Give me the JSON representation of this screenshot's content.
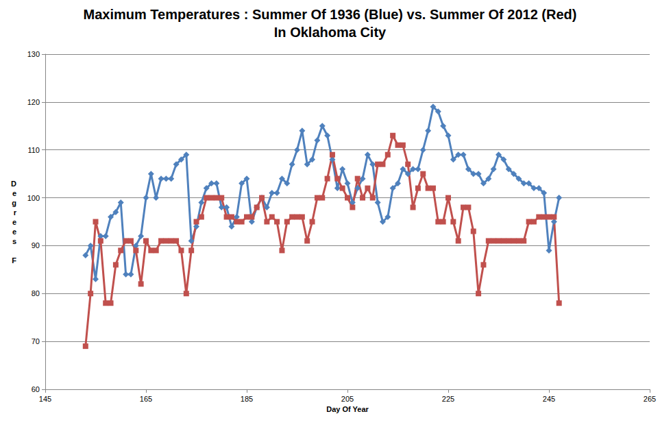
{
  "chart_data": {
    "type": "line",
    "title": "Maximum Temperatures : Summer Of 1936 (Blue) vs. Summer Of 2012 (Red)",
    "subtitle": "In Oklahoma City",
    "x_label": "Day Of Year",
    "y_label": "Degrees F",
    "x": [
      153,
      154,
      155,
      156,
      157,
      158,
      159,
      160,
      161,
      162,
      163,
      164,
      165,
      166,
      167,
      168,
      169,
      170,
      171,
      172,
      173,
      174,
      175,
      176,
      177,
      178,
      179,
      180,
      181,
      182,
      183,
      184,
      185,
      186,
      187,
      188,
      189,
      190,
      191,
      192,
      193,
      194,
      195,
      196,
      197,
      198,
      199,
      200,
      201,
      202,
      203,
      204,
      205,
      206,
      207,
      208,
      209,
      210,
      211,
      212,
      213,
      214,
      215,
      216,
      217,
      218,
      219,
      220,
      221,
      222,
      223,
      224,
      225,
      226,
      227,
      228,
      229,
      230,
      231,
      232,
      233,
      234,
      235,
      236,
      237,
      238,
      239,
      240,
      241,
      242,
      243,
      244,
      245,
      246,
      247
    ],
    "series": [
      {
        "color": "#4F81BD",
        "marker": "diamond",
        "values": [
          88,
          90,
          83,
          92,
          92,
          96,
          97,
          99,
          84,
          84,
          90,
          92,
          100,
          105,
          100,
          104,
          104,
          104,
          107,
          108,
          109,
          91,
          94,
          99,
          102,
          103,
          103,
          98,
          98,
          94,
          96,
          103,
          104,
          95,
          98,
          100,
          98,
          101,
          101,
          104,
          103,
          107,
          110,
          114,
          107,
          108,
          112,
          115,
          113,
          108,
          102,
          106,
          103,
          99,
          102,
          104,
          109,
          107,
          99,
          95,
          96,
          102,
          103,
          106,
          105,
          106,
          106,
          110,
          114,
          119,
          118,
          115,
          113,
          108,
          109,
          109,
          106,
          105,
          105,
          103,
          104,
          106,
          109,
          108,
          106,
          105,
          104,
          103,
          103,
          102,
          102,
          101,
          89,
          95,
          100
        ]
      },
      {
        "color": "#C0504D",
        "marker": "square",
        "values": [
          69,
          80,
          95,
          91,
          78,
          78,
          86,
          89,
          91,
          91,
          89,
          82,
          91,
          89,
          89,
          91,
          91,
          91,
          91,
          89,
          80,
          89,
          95,
          96,
          100,
          100,
          100,
          100,
          96,
          96,
          95,
          95,
          96,
          96,
          98,
          100,
          95,
          96,
          95,
          89,
          95,
          96,
          96,
          96,
          91,
          95,
          100,
          100,
          104,
          109,
          104,
          102,
          100,
          98,
          104,
          100,
          102,
          100,
          107,
          107,
          109,
          113,
          111,
          111,
          107,
          98,
          102,
          105,
          102,
          102,
          95,
          95,
          100,
          95,
          91,
          98,
          98,
          93,
          80,
          86,
          91,
          91,
          91,
          91,
          91,
          91,
          91,
          91,
          95,
          95,
          96,
          96,
          96,
          96,
          78
        ]
      }
    ],
    "xlim": [
      145,
      265
    ],
    "xticks": [
      145,
      165,
      185,
      205,
      225,
      245,
      265
    ],
    "ylim": [
      60,
      130
    ],
    "yticks": [
      60,
      70,
      80,
      90,
      100,
      110,
      120,
      130
    ],
    "grid": "y",
    "line_style": "solid"
  }
}
